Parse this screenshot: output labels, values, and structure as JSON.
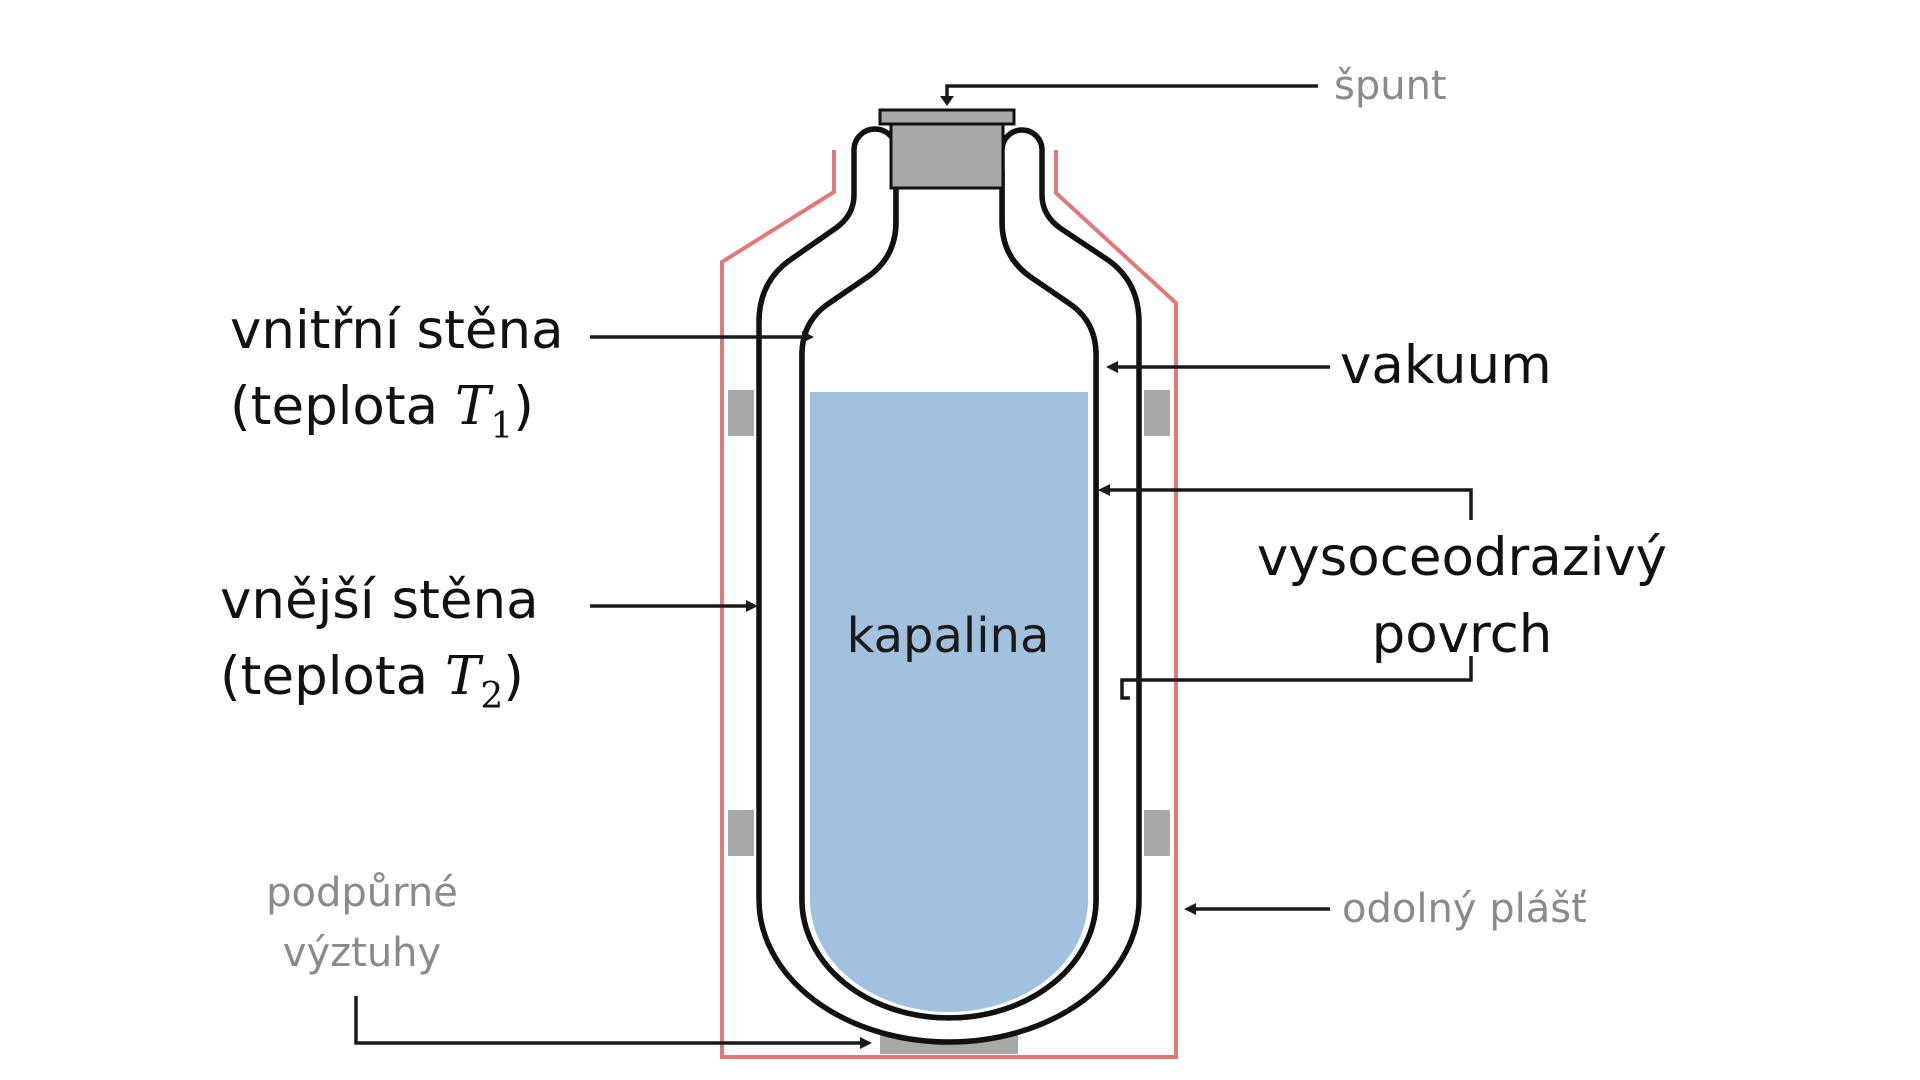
{
  "labels": {
    "cork": "špunt",
    "inner_wall": {
      "line1": "vnitřní stěna",
      "line2_prefix": "(teplota ",
      "symbol": "T",
      "subscript": "1",
      "line2_suffix": ")"
    },
    "outer_wall": {
      "line1": "vnější stěna",
      "line2_prefix": "(teplota ",
      "symbol": "T",
      "subscript": "2",
      "line2_suffix": ")"
    },
    "vacuum": "vakuum",
    "reflective": {
      "line1": "vysoceodrazivý",
      "line2": "povrch"
    },
    "liquid": "kapalina",
    "supports": {
      "line1": "podpůrné",
      "line2": "výztuhy"
    },
    "casing": "odolný plášť"
  },
  "colors": {
    "casing": "#e07a7a",
    "liquid": "#a2c1de",
    "cork": "#a8a8a8",
    "support": "#a8a8a8",
    "wall": "#111111",
    "grey_label": "#8a8a8a",
    "dark_label": "#111111"
  }
}
